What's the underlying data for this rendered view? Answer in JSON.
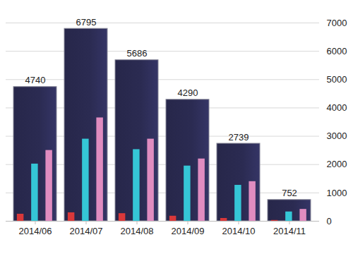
{
  "chart_data": {
    "type": "bar",
    "categories": [
      "2014/06",
      "2014/07",
      "2014/08",
      "2014/09",
      "2014/10",
      "2014/11"
    ],
    "series": [
      {
        "color": "#2b2b52",
        "values": [
          4740,
          6795,
          5686,
          4290,
          2739,
          752
        ],
        "data_labels": true
      },
      {
        "color": "#d9383a",
        "values": [
          250,
          300,
          270,
          180,
          100,
          30
        ]
      },
      {
        "color": "#35c6d6",
        "values": [
          2020,
          2900,
          2530,
          1950,
          1270,
          330
        ]
      },
      {
        "color": "#e08cc0",
        "values": [
          2500,
          3650,
          2900,
          2200,
          1400,
          420
        ]
      }
    ],
    "ylim": [
      0,
      7000
    ],
    "yticks": [
      0,
      1000,
      2000,
      3000,
      4000,
      5000,
      6000,
      7000
    ],
    "grid": true
  }
}
